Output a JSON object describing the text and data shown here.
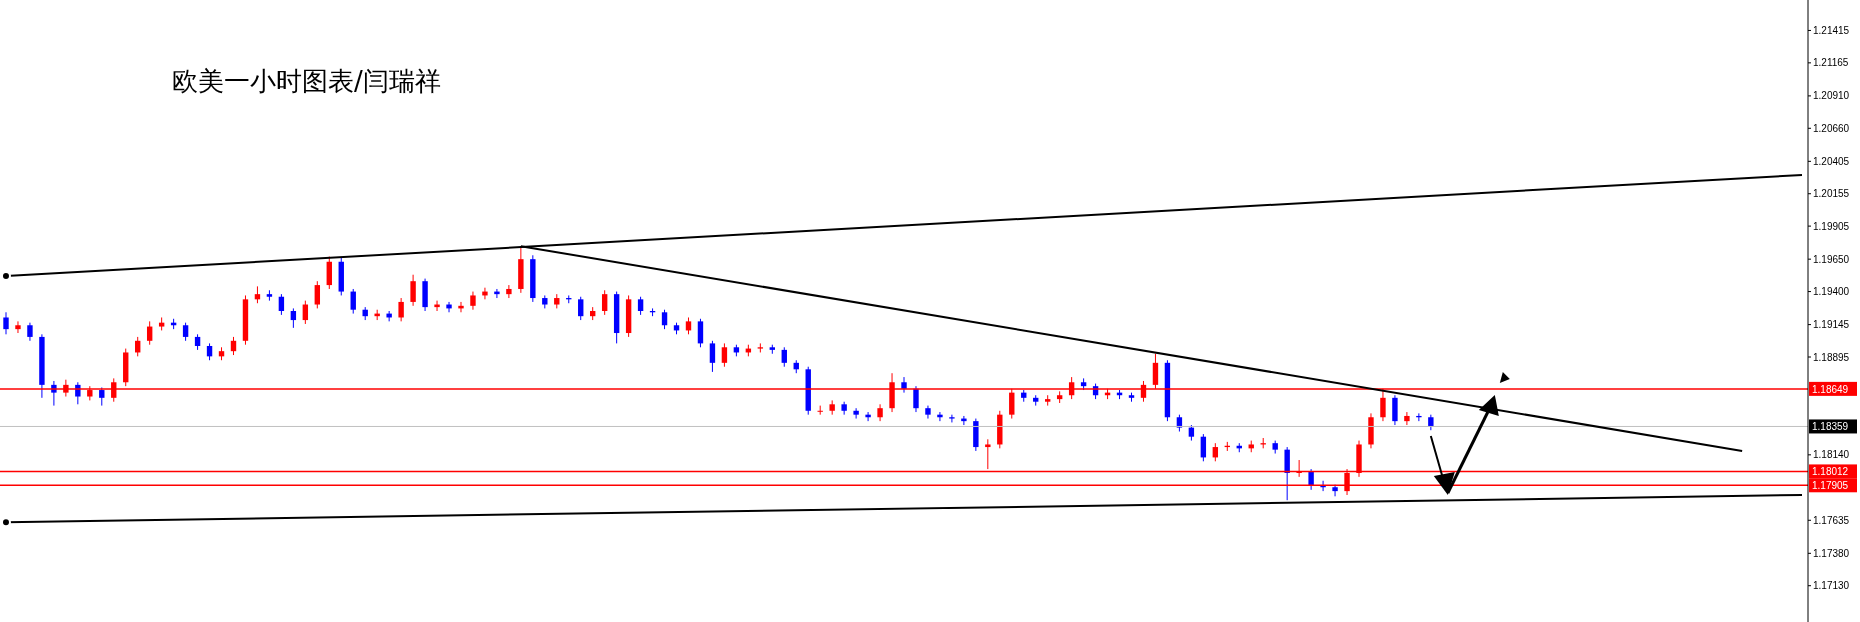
{
  "chart_data": {
    "type": "candlestick",
    "title": "欧美一小时图表/闫瑞祥",
    "categories": [
      null,
      null,
      null,
      null,
      null,
      null,
      null,
      null,
      null,
      null,
      null,
      null,
      null,
      null,
      null,
      null,
      null,
      null,
      null,
      null,
      null,
      null,
      null,
      null,
      null,
      null,
      null,
      null,
      null,
      null,
      null,
      null,
      null,
      null,
      null,
      null,
      null,
      null,
      null,
      null,
      null,
      null,
      null,
      null,
      null,
      null,
      null,
      null,
      null,
      null,
      null,
      null,
      null,
      null,
      null,
      null,
      null,
      null,
      null,
      null,
      null,
      null,
      null,
      null,
      null,
      null,
      null,
      null,
      null,
      null,
      null,
      null,
      null,
      null,
      null,
      null,
      null,
      null,
      null,
      null,
      null,
      null,
      null,
      null,
      null,
      null,
      null,
      null,
      null,
      null,
      null,
      null,
      null,
      null,
      null,
      null,
      null,
      null,
      null,
      null,
      null,
      null,
      null,
      null,
      null,
      null,
      null,
      null,
      null,
      null,
      null,
      null,
      null,
      null,
      null,
      null,
      null,
      null,
      null,
      null,
      null,
      null,
      null,
      null,
      null,
      null,
      null,
      null,
      null,
      null,
      null,
      null,
      null,
      null,
      null,
      null,
      null,
      null,
      null,
      null,
      null,
      null,
      null,
      null,
      null,
      null,
      null,
      null,
      null,
      null,
      null
    ],
    "ohlc": [
      [
        1.192,
        1.1924,
        1.1907,
        1.1911
      ],
      [
        1.1911,
        1.1917,
        1.1908,
        1.1914
      ],
      [
        1.1914,
        1.1916,
        1.1902,
        1.1905
      ],
      [
        1.1905,
        1.1907,
        1.1858,
        1.1868
      ],
      [
        1.1868,
        1.1871,
        1.1852,
        1.1862
      ],
      [
        1.1862,
        1.1872,
        1.1859,
        1.1868
      ],
      [
        1.1868,
        1.187,
        1.1853,
        1.1859
      ],
      [
        1.1859,
        1.1867,
        1.1856,
        1.1864
      ],
      [
        1.1864,
        1.1866,
        1.1852,
        1.1858
      ],
      [
        1.1858,
        1.1873,
        1.1855,
        1.187
      ],
      [
        1.187,
        1.1896,
        1.1867,
        1.1893
      ],
      [
        1.1893,
        1.1905,
        1.189,
        1.1902
      ],
      [
        1.1902,
        1.1917,
        1.1899,
        1.1913
      ],
      [
        1.1913,
        1.192,
        1.191,
        1.1916
      ],
      [
        1.1916,
        1.1919,
        1.1911,
        1.1914
      ],
      [
        1.1914,
        1.1916,
        1.1902,
        1.1905
      ],
      [
        1.1905,
        1.1907,
        1.1895,
        1.1898
      ],
      [
        1.1898,
        1.19,
        1.1887,
        1.189
      ],
      [
        1.189,
        1.1897,
        1.1887,
        1.1894
      ],
      [
        1.1894,
        1.1905,
        1.1891,
        1.1902
      ],
      [
        1.1902,
        1.1937,
        1.1899,
        1.1934
      ],
      [
        1.1934,
        1.1944,
        1.1931,
        1.1938
      ],
      [
        1.1938,
        1.1941,
        1.1933,
        1.1936
      ],
      [
        1.1936,
        1.1938,
        1.1922,
        1.1925
      ],
      [
        1.1925,
        1.1927,
        1.1912,
        1.1918
      ],
      [
        1.1918,
        1.1933,
        1.1915,
        1.193
      ],
      [
        1.193,
        1.1948,
        1.1927,
        1.1945
      ],
      [
        1.1945,
        1.1967,
        1.1942,
        1.1963
      ],
      [
        1.1963,
        1.1966,
        1.1937,
        1.194
      ],
      [
        1.194,
        1.1942,
        1.1923,
        1.1926
      ],
      [
        1.1926,
        1.1928,
        1.1918,
        1.1921
      ],
      [
        1.1921,
        1.1926,
        1.1918,
        1.1923
      ],
      [
        1.1923,
        1.1925,
        1.1917,
        1.192
      ],
      [
        1.192,
        1.1935,
        1.1917,
        1.1932
      ],
      [
        1.1932,
        1.1953,
        1.1929,
        1.1948
      ],
      [
        1.1948,
        1.195,
        1.1925,
        1.1928
      ],
      [
        1.1928,
        1.1933,
        1.1925,
        1.193
      ],
      [
        1.193,
        1.1932,
        1.1924,
        1.1927
      ],
      [
        1.1927,
        1.1932,
        1.1924,
        1.1929
      ],
      [
        1.1929,
        1.194,
        1.1926,
        1.1937
      ],
      [
        1.1937,
        1.1943,
        1.1934,
        1.194
      ],
      [
        1.194,
        1.1942,
        1.1935,
        1.1938
      ],
      [
        1.1938,
        1.1945,
        1.1935,
        1.1942
      ],
      [
        1.1942,
        1.1975,
        1.1939,
        1.1965
      ],
      [
        1.1965,
        1.1968,
        1.1932,
        1.1935
      ],
      [
        1.1935,
        1.1937,
        1.1927,
        1.193
      ],
      [
        1.193,
        1.1938,
        1.1927,
        1.1935
      ],
      [
        1.1935,
        1.1937,
        1.1931,
        1.1934
      ],
      [
        1.1934,
        1.1936,
        1.1918,
        1.1921
      ],
      [
        1.1921,
        1.1928,
        1.1918,
        1.1925
      ],
      [
        1.1925,
        1.1941,
        1.1922,
        1.1938
      ],
      [
        1.1938,
        1.194,
        1.19,
        1.1908
      ],
      [
        1.1908,
        1.1937,
        1.1905,
        1.1934
      ],
      [
        1.1934,
        1.1936,
        1.1922,
        1.1925
      ],
      [
        1.1925,
        1.1927,
        1.1921,
        1.1924
      ],
      [
        1.1924,
        1.1926,
        1.1911,
        1.1914
      ],
      [
        1.1914,
        1.1916,
        1.1907,
        1.191
      ],
      [
        1.191,
        1.192,
        1.1907,
        1.1917
      ],
      [
        1.1917,
        1.1919,
        1.1897,
        1.19
      ],
      [
        1.19,
        1.1902,
        1.1878,
        1.1885
      ],
      [
        1.1885,
        1.19,
        1.1882,
        1.1897
      ],
      [
        1.1897,
        1.1899,
        1.189,
        1.1893
      ],
      [
        1.1893,
        1.1899,
        1.189,
        1.1896
      ],
      [
        1.1896,
        1.19,
        1.1893,
        1.1897
      ],
      [
        1.1897,
        1.1899,
        1.1892,
        1.1895
      ],
      [
        1.1895,
        1.1897,
        1.1882,
        1.1885
      ],
      [
        1.1885,
        1.1887,
        1.1877,
        1.188
      ],
      [
        1.188,
        1.1882,
        1.1845,
        1.1848
      ],
      [
        1.1848,
        1.1852,
        1.1845,
        1.1848
      ],
      [
        1.1848,
        1.1856,
        1.1845,
        1.1853
      ],
      [
        1.1853,
        1.1855,
        1.1845,
        1.1848
      ],
      [
        1.1848,
        1.185,
        1.1842,
        1.1845
      ],
      [
        1.1845,
        1.1847,
        1.184,
        1.1843
      ],
      [
        1.1843,
        1.1853,
        1.184,
        1.185
      ],
      [
        1.185,
        1.1877,
        1.1847,
        1.187
      ],
      [
        1.187,
        1.1874,
        1.1862,
        1.1865
      ],
      [
        1.1865,
        1.1867,
        1.1847,
        1.185
      ],
      [
        1.185,
        1.1852,
        1.1842,
        1.1845
      ],
      [
        1.1845,
        1.1847,
        1.184,
        1.1843
      ],
      [
        1.1843,
        1.1845,
        1.1839,
        1.1842
      ],
      [
        1.1842,
        1.1844,
        1.1837,
        1.184
      ],
      [
        1.184,
        1.1842,
        1.1817,
        1.182
      ],
      [
        1.182,
        1.1826,
        1.1803,
        1.1822
      ],
      [
        1.1822,
        1.1848,
        1.1819,
        1.1845
      ],
      [
        1.1845,
        1.1865,
        1.1842,
        1.1862
      ],
      [
        1.1862,
        1.1864,
        1.1855,
        1.1858
      ],
      [
        1.1858,
        1.186,
        1.1852,
        1.1855
      ],
      [
        1.1855,
        1.186,
        1.1852,
        1.1857
      ],
      [
        1.1857,
        1.1863,
        1.1854,
        1.186
      ],
      [
        1.186,
        1.1874,
        1.1857,
        1.187
      ],
      [
        1.187,
        1.1873,
        1.1864,
        1.1867
      ],
      [
        1.1867,
        1.1869,
        1.1857,
        1.186
      ],
      [
        1.186,
        1.1865,
        1.1857,
        1.1862
      ],
      [
        1.1862,
        1.1864,
        1.1857,
        1.186
      ],
      [
        1.186,
        1.1862,
        1.1855,
        1.1858
      ],
      [
        1.1858,
        1.1871,
        1.1855,
        1.1868
      ],
      [
        1.1868,
        1.1892,
        1.1865,
        1.1885
      ],
      [
        1.1885,
        1.1887,
        1.184,
        1.1843
      ],
      [
        1.1843,
        1.1845,
        1.1832,
        1.1835
      ],
      [
        1.1835,
        1.1837,
        1.1825,
        1.1828
      ],
      [
        1.1828,
        1.183,
        1.1809,
        1.1812
      ],
      [
        1.1812,
        1.1823,
        1.1809,
        1.182
      ],
      [
        1.182,
        1.1824,
        1.1817,
        1.1821
      ],
      [
        1.1821,
        1.1823,
        1.1816,
        1.1819
      ],
      [
        1.1819,
        1.1825,
        1.1816,
        1.1822
      ],
      [
        1.1822,
        1.1827,
        1.1819,
        1.1823
      ],
      [
        1.1823,
        1.1825,
        1.1815,
        1.1818
      ],
      [
        1.1818,
        1.182,
        1.1779,
        1.18
      ],
      [
        1.18,
        1.181,
        1.1797,
        1.1801
      ],
      [
        1.1801,
        1.1803,
        1.1787,
        1.179
      ],
      [
        1.179,
        1.1794,
        1.1786,
        1.1789
      ],
      [
        1.1789,
        1.1791,
        1.1782,
        1.1786
      ],
      [
        1.1786,
        1.1803,
        1.1783,
        1.18
      ],
      [
        1.18,
        1.1825,
        1.1797,
        1.1822
      ],
      [
        1.1822,
        1.1846,
        1.1819,
        1.1843
      ],
      [
        1.1843,
        1.1865,
        1.184,
        1.1858
      ],
      [
        1.1858,
        1.186,
        1.1837,
        1.184
      ],
      [
        1.184,
        1.1847,
        1.1837,
        1.1844
      ],
      [
        1.1844,
        1.1846,
        1.184,
        1.1843
      ],
      [
        1.1843,
        1.1845,
        1.1833,
        1.1836
      ],
      null,
      null,
      null,
      null,
      null,
      null,
      null,
      null,
      null,
      null,
      null,
      null,
      null,
      null,
      null,
      null,
      null,
      null,
      null,
      null,
      null,
      null,
      null,
      null,
      null,
      null,
      null,
      null,
      null,
      null,
      null
    ],
    "series": [
      {
        "type": "line",
        "color": "#000000",
        "values": [
          1.1952,
          null,
          null,
          null,
          null,
          null,
          null,
          null,
          null,
          null,
          null,
          null,
          null,
          null,
          null,
          null,
          null,
          null,
          null,
          null,
          null,
          null,
          null,
          null,
          null,
          null,
          null,
          null,
          null,
          null,
          null,
          null,
          null,
          null,
          null,
          null,
          null,
          null,
          null,
          null,
          null,
          null,
          null,
          null,
          null,
          null,
          null,
          null,
          null,
          null,
          null,
          null,
          null,
          null,
          null,
          null,
          null,
          null,
          null,
          null,
          null,
          null,
          null,
          null,
          null,
          null,
          null,
          null,
          null,
          null,
          null,
          null,
          null,
          null,
          null,
          null,
          null,
          null,
          null,
          null,
          null,
          null,
          null,
          null,
          null,
          null,
          null,
          null,
          null,
          null,
          null,
          null,
          null,
          null,
          null,
          null,
          null,
          null,
          null,
          null,
          null,
          null,
          null,
          null,
          null,
          null,
          null,
          null,
          null,
          null,
          null,
          null,
          null,
          null,
          null,
          null,
          null,
          null,
          null,
          null,
          null,
          null,
          null,
          null,
          null,
          null,
          null,
          null,
          null,
          null,
          null,
          null,
          null,
          null,
          null,
          null,
          null,
          null,
          null,
          null,
          null,
          null,
          null,
          null,
          null,
          null,
          null,
          null,
          null,
          null,
          1.203
        ]
      },
      {
        "type": "line",
        "color": "#000000",
        "values": [
          null,
          null,
          null,
          null,
          null,
          null,
          null,
          null,
          null,
          null,
          null,
          null,
          null,
          null,
          null,
          null,
          null,
          null,
          null,
          null,
          null,
          null,
          null,
          null,
          null,
          null,
          null,
          null,
          null,
          null,
          null,
          null,
          null,
          null,
          null,
          null,
          null,
          null,
          null,
          null,
          null,
          null,
          null,
          1.1975,
          null,
          null,
          null,
          null,
          null,
          null,
          null,
          null,
          null,
          null,
          null,
          null,
          null,
          null,
          null,
          null,
          null,
          null,
          null,
          null,
          null,
          null,
          null,
          null,
          null,
          null,
          null,
          null,
          null,
          null,
          null,
          null,
          null,
          null,
          null,
          null,
          null,
          null,
          null,
          null,
          null,
          null,
          null,
          null,
          null,
          null,
          null,
          null,
          null,
          null,
          null,
          null,
          null,
          null,
          null,
          null,
          null,
          null,
          null,
          null,
          null,
          null,
          null,
          null,
          null,
          null,
          null,
          null,
          null,
          null,
          null,
          null,
          null,
          null,
          null,
          null,
          null,
          null,
          null,
          null,
          null,
          null,
          null,
          null,
          null,
          null,
          null,
          null,
          null,
          null,
          null,
          null,
          null,
          null,
          null,
          null,
          null,
          null,
          null,
          null,
          null,
          1.1817,
          null,
          null,
          null,
          null,
          null
        ]
      },
      {
        "type": "line",
        "color": "#000000",
        "values": [
          1.1762,
          null,
          null,
          null,
          null,
          null,
          null,
          null,
          null,
          null,
          null,
          null,
          null,
          null,
          null,
          null,
          null,
          null,
          null,
          null,
          null,
          null,
          null,
          null,
          null,
          null,
          null,
          null,
          null,
          null,
          null,
          null,
          null,
          null,
          null,
          null,
          null,
          null,
          null,
          null,
          null,
          null,
          null,
          null,
          null,
          null,
          null,
          null,
          null,
          null,
          null,
          null,
          null,
          null,
          null,
          null,
          null,
          null,
          null,
          null,
          null,
          null,
          null,
          null,
          null,
          null,
          null,
          null,
          null,
          null,
          null,
          null,
          null,
          null,
          null,
          null,
          null,
          null,
          null,
          null,
          null,
          null,
          null,
          null,
          null,
          null,
          null,
          null,
          null,
          null,
          null,
          null,
          null,
          null,
          null,
          null,
          null,
          null,
          null,
          null,
          null,
          null,
          null,
          null,
          null,
          null,
          null,
          null,
          null,
          null,
          null,
          null,
          null,
          null,
          null,
          null,
          null,
          null,
          null,
          null,
          null,
          null,
          null,
          null,
          null,
          null,
          null,
          null,
          null,
          null,
          null,
          null,
          null,
          null,
          null,
          null,
          null,
          null,
          null,
          null,
          null,
          null,
          null,
          null,
          null,
          null,
          null,
          null,
          null,
          null,
          1.1783
        ]
      }
    ],
    "ylim": [
      1.1685,
      1.2165
    ],
    "yticks": [
      1.21415,
      {
        "value": 1.21165,
        "label": "1.21165"
      },
      {
        "value": 1.2091,
        "label": "1.20910"
      },
      {
        "value": 1.2066,
        "label": "1.20660"
      },
      1.20405,
      1.20155,
      1.19905,
      {
        "value": 1.1965,
        "label": "1.19650"
      },
      {
        "value": 1.194,
        "label": "1.19400"
      },
      1.19145,
      1.18895,
      {
        "value": 1.1814,
        "label": "1.18140"
      },
      1.17635,
      {
        "value": 1.1738,
        "label": "1.17380"
      },
      {
        "value": 1.1713,
        "label": "1.17130"
      }
    ],
    "ref_lines": [
      {
        "axis": "y",
        "value": 1.18649,
        "label": "1.18649",
        "color": "#ff0000"
      },
      {
        "axis": "y",
        "value": 1.18359,
        "label": "1.18359",
        "color": "#c0c0c0"
      },
      {
        "axis": "y",
        "value": 1.18012,
        "label": "1.18012",
        "color": "#ff0000"
      },
      {
        "axis": "y",
        "value": 1.17905,
        "label": "1.17905",
        "color": "#ff0000"
      }
    ],
    "tick_labels": "y"
  }
}
